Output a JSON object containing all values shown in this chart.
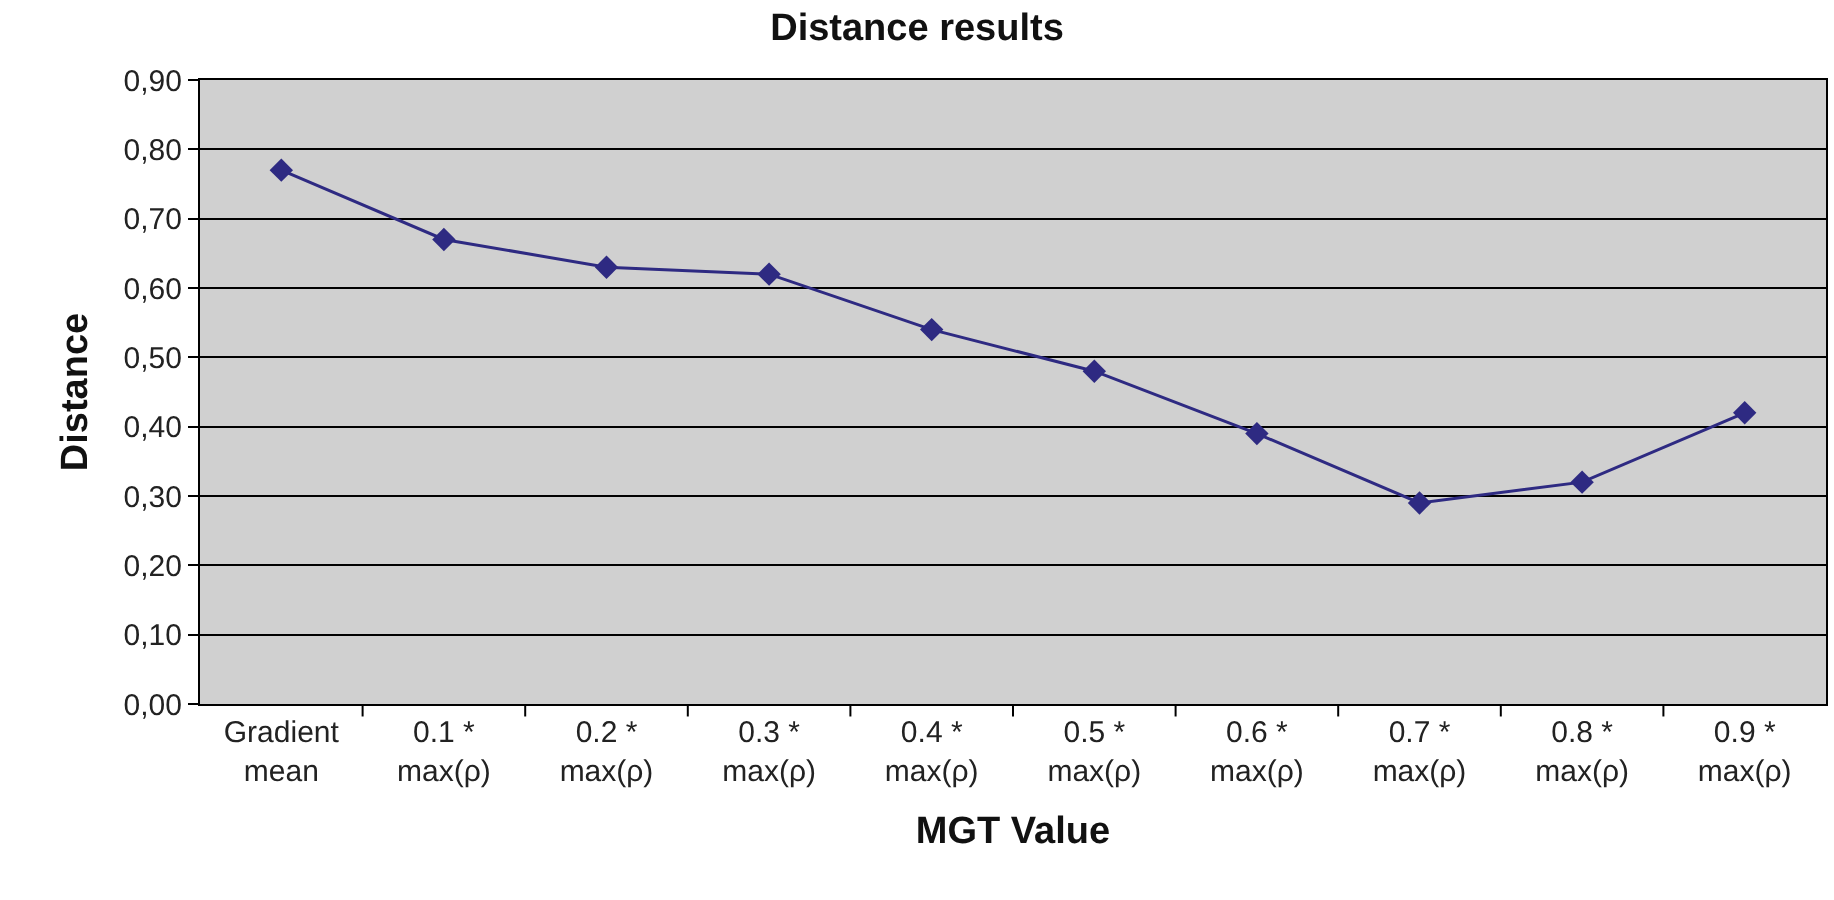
{
  "chart_data": {
    "type": "line",
    "title": "Distance results",
    "xlabel": "MGT Value",
    "ylabel": "Distance",
    "categories": [
      "Gradient mean",
      "0.1 * max(ρ)",
      "0.2 * max(ρ)",
      "0.3 * max(ρ)",
      "0.4 * max(ρ)",
      "0.5 * max(ρ)",
      "0.6 * max(ρ)",
      "0.7 * max(ρ)",
      "0.8 * max(ρ)",
      "0.9 * max(ρ)"
    ],
    "series": [
      {
        "color": "#2e2a82",
        "values": [
          0.77,
          0.67,
          0.63,
          0.62,
          0.54,
          0.48,
          0.39,
          0.29,
          0.32,
          0.42
        ]
      }
    ],
    "ylim": [
      0,
      0.9
    ],
    "yticks": [
      {
        "value": 0,
        "label": "0,00"
      },
      {
        "value": 0.1,
        "label": "0,10"
      },
      {
        "value": 0.2,
        "label": "0,20"
      },
      {
        "value": 0.3,
        "label": "0,30"
      },
      {
        "value": 0.4,
        "label": "0,40"
      },
      {
        "value": 0.5,
        "label": "0,50"
      },
      {
        "value": 0.6,
        "label": "0,60"
      },
      {
        "value": 0.7,
        "label": "0,70"
      },
      {
        "value": 0.8,
        "label": "0,80"
      },
      {
        "value": 0.9,
        "label": "0,90"
      }
    ],
    "grid": "y",
    "marker": "diamond",
    "line_style": "solid"
  }
}
